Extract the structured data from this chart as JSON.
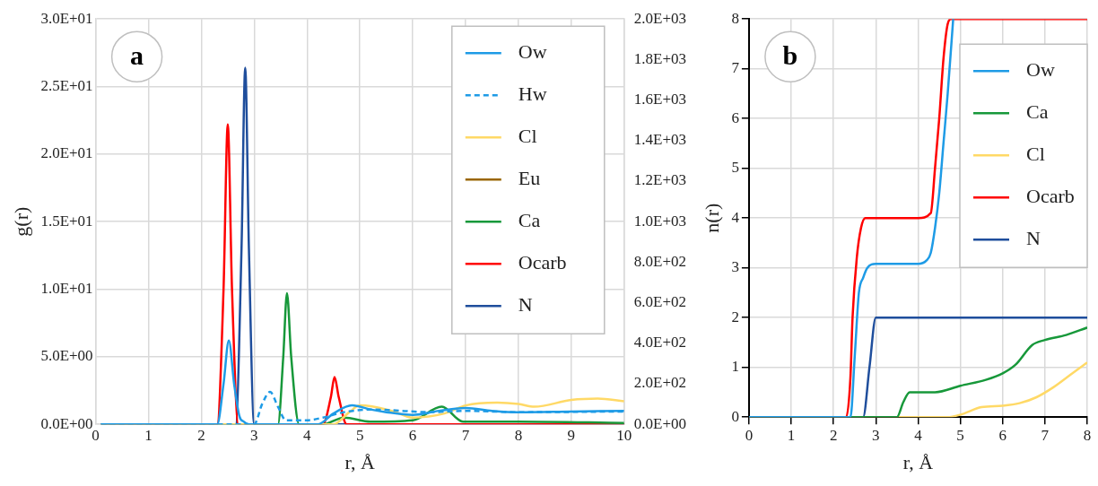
{
  "chart_data": [
    {
      "type": "line",
      "annotations": [
        "a"
      ],
      "xlabel": "r, Å",
      "ylabel": "g(r)",
      "xlim": [
        0,
        10
      ],
      "xticks": [
        0,
        1,
        2,
        3,
        4,
        5,
        6,
        7,
        8,
        9,
        10
      ],
      "ylim": [
        0,
        30
      ],
      "yticks": [
        {
          "value": 0,
          "label": "0.0E+00"
        },
        {
          "value": 5,
          "label": "5.0E+00"
        },
        {
          "value": 10,
          "label": "1.0E+01"
        },
        {
          "value": 15,
          "label": "1.5E+01"
        },
        {
          "value": 20,
          "label": "2.0E+01"
        },
        {
          "value": 25,
          "label": "2.5E+01"
        },
        {
          "value": 30,
          "label": "3.0E+01"
        }
      ],
      "y2lim": [
        0,
        2000
      ],
      "y2ticks": [
        {
          "value": 0,
          "label": "0.0E+00"
        },
        {
          "value": 200,
          "label": "2.0E+02"
        },
        {
          "value": 400,
          "label": "4.0E+02"
        },
        {
          "value": 600,
          "label": "6.0E+02"
        },
        {
          "value": 800,
          "label": "8.0E+02"
        },
        {
          "value": 1000,
          "label": "1.0E+03"
        },
        {
          "value": 1200,
          "label": "1.2E+03"
        },
        {
          "value": 1400,
          "label": "1.4E+03"
        },
        {
          "value": 1600,
          "label": "1.6E+03"
        },
        {
          "value": 1800,
          "label": "1.8E+03"
        },
        {
          "value": 2000,
          "label": "2.0E+03"
        }
      ],
      "grid": true,
      "legend": "top right",
      "marker": "none",
      "series": [
        {
          "name": "Ow",
          "color": "#1e9be6",
          "x": [
            0.1,
            2.3,
            2.42,
            2.52,
            2.62,
            2.72,
            2.8,
            2.9,
            4.2,
            4.5,
            4.85,
            5.2,
            5.5,
            6.0,
            6.5,
            7.0,
            7.5,
            8.0,
            9.0,
            10
          ],
          "values": [
            0,
            0,
            3,
            6.2,
            3,
            0.6,
            0.2,
            0,
            0,
            0.8,
            1.4,
            1.1,
            0.9,
            0.7,
            1.0,
            1.2,
            1.0,
            0.9,
            0.95,
            1.0
          ]
        },
        {
          "name": "Hw",
          "color": "#1e9be6",
          "line_style": "dashed",
          "x": [
            0.1,
            3.0,
            3.15,
            3.3,
            3.45,
            3.6,
            4.0,
            4.3,
            4.7,
            5.2,
            5.8,
            6.3,
            7.0,
            8.0,
            10
          ],
          "values": [
            0,
            0,
            1.5,
            2.4,
            1.3,
            0.3,
            0.3,
            0.5,
            0.9,
            1.1,
            1.0,
            0.9,
            1.0,
            0.9,
            0.95
          ]
        },
        {
          "name": "Cl",
          "color": "#ffd966",
          "x": [
            0.1,
            4.5,
            4.8,
            5.0,
            5.6,
            6.0,
            6.6,
            7.0,
            7.6,
            8.0,
            8.3,
            9.0,
            9.5,
            10
          ],
          "values": [
            0,
            0,
            0.9,
            1.4,
            1.0,
            0.5,
            0.8,
            1.4,
            1.6,
            1.5,
            1.3,
            1.8,
            1.9,
            1.7
          ]
        },
        {
          "name": "Eu",
          "color": "#996600"
        },
        {
          "name": "Ca",
          "color": "#17983a",
          "x": [
            0.1,
            3.45,
            3.55,
            3.62,
            3.7,
            3.85,
            4.3,
            4.7,
            5.2,
            6.0,
            6.55,
            6.95,
            8.0,
            10
          ],
          "values": [
            0,
            0,
            5,
            9.7,
            5,
            0,
            0,
            0.5,
            0.2,
            0.3,
            1.3,
            0.2,
            0.2,
            0.1
          ]
        },
        {
          "name": "Ocarb",
          "color": "#ff0000",
          "x": [
            0.1,
            2.3,
            2.42,
            2.5,
            2.58,
            2.7,
            4.3,
            4.45,
            4.52,
            4.6,
            4.75,
            10
          ],
          "values": [
            0,
            0,
            10,
            22.2,
            10,
            0,
            0,
            2,
            3.5,
            2,
            0,
            0
          ]
        },
        {
          "name": "N",
          "color": "#1f4e9c",
          "x": [
            0.1,
            2.65,
            2.76,
            2.83,
            2.9,
            3.0,
            10
          ],
          "values": [
            0,
            0,
            13,
            26.4,
            13,
            0,
            0
          ]
        }
      ]
    },
    {
      "type": "line",
      "annotations": [
        "b"
      ],
      "xlabel": "r, Å",
      "ylabel": "n(r)",
      "xlim": [
        0,
        8
      ],
      "xticks": [
        0,
        1,
        2,
        3,
        4,
        5,
        6,
        7,
        8
      ],
      "ylim": [
        0,
        8
      ],
      "yticks": [
        0,
        1,
        2,
        3,
        4,
        5,
        6,
        7,
        8
      ],
      "grid": true,
      "legend": "top right",
      "marker": "none",
      "series": [
        {
          "name": "Ow",
          "color": "#1e9be6",
          "x": [
            0,
            2.4,
            2.5,
            2.6,
            2.7,
            2.8,
            3.0,
            4.0,
            4.2,
            4.3,
            4.4,
            4.5,
            4.6,
            4.7,
            4.83
          ],
          "values": [
            0,
            0,
            1.2,
            2.5,
            2.8,
            3.0,
            3.08,
            3.08,
            3.15,
            3.3,
            3.8,
            4.5,
            5.5,
            6.5,
            8
          ]
        },
        {
          "name": "Ca",
          "color": "#17983a",
          "x": [
            0,
            3.5,
            3.65,
            3.8,
            4.4,
            5.0,
            5.6,
            6.0,
            6.3,
            6.7,
            7.0,
            7.5,
            8
          ],
          "values": [
            0,
            0,
            0.3,
            0.5,
            0.5,
            0.63,
            0.75,
            0.88,
            1.05,
            1.45,
            1.55,
            1.65,
            1.8
          ]
        },
        {
          "name": "Cl",
          "color": "#ffd966",
          "x": [
            0,
            4.7,
            5.0,
            5.5,
            6.0,
            6.4,
            6.8,
            7.2,
            7.6,
            8
          ],
          "values": [
            0,
            0,
            0.05,
            0.2,
            0.23,
            0.28,
            0.4,
            0.6,
            0.85,
            1.1
          ]
        },
        {
          "name": "Ocarb",
          "color": "#ff0000",
          "x": [
            0,
            2.3,
            2.4,
            2.45,
            2.55,
            2.65,
            2.75,
            4.0,
            4.3,
            4.4,
            4.5,
            4.6,
            4.7,
            4.78,
            8
          ],
          "values": [
            0,
            0,
            0.8,
            2,
            3.2,
            3.8,
            4.0,
            4.0,
            4.1,
            5,
            6,
            7.2,
            7.9,
            8,
            8
          ]
        },
        {
          "name": "N",
          "color": "#1f4e9c",
          "x": [
            0,
            2.7,
            2.85,
            3.0,
            8
          ],
          "values": [
            0,
            0,
            1.0,
            2.0,
            2.0
          ]
        }
      ]
    }
  ]
}
